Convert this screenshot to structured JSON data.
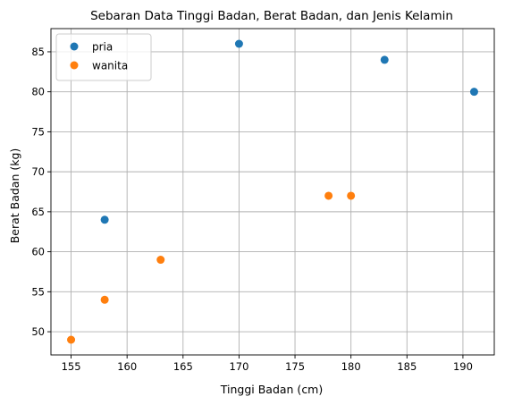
{
  "chart_data": {
    "type": "scatter",
    "title": "Sebaran Data Tinggi Badan, Berat Badan, dan Jenis Kelamin",
    "xlabel": "Tinggi Badan (cm)",
    "ylabel": "Berat Badan (kg)",
    "xlim": [
      153.2,
      192.8
    ],
    "ylim": [
      47.1,
      87.9
    ],
    "xticks": [
      155,
      160,
      165,
      170,
      175,
      180,
      185,
      190
    ],
    "yticks": [
      50,
      55,
      60,
      65,
      70,
      75,
      80,
      85
    ],
    "grid": true,
    "legend_position": "top-left",
    "series": [
      {
        "name": "pria",
        "color": "#1f77b4",
        "points": [
          [
            158,
            64
          ],
          [
            170,
            86
          ],
          [
            183,
            84
          ],
          [
            191,
            80
          ]
        ]
      },
      {
        "name": "wanita",
        "color": "#ff7f0e",
        "points": [
          [
            155,
            49
          ],
          [
            158,
            54
          ],
          [
            163,
            59
          ],
          [
            178,
            67
          ],
          [
            180,
            67
          ]
        ]
      }
    ]
  }
}
